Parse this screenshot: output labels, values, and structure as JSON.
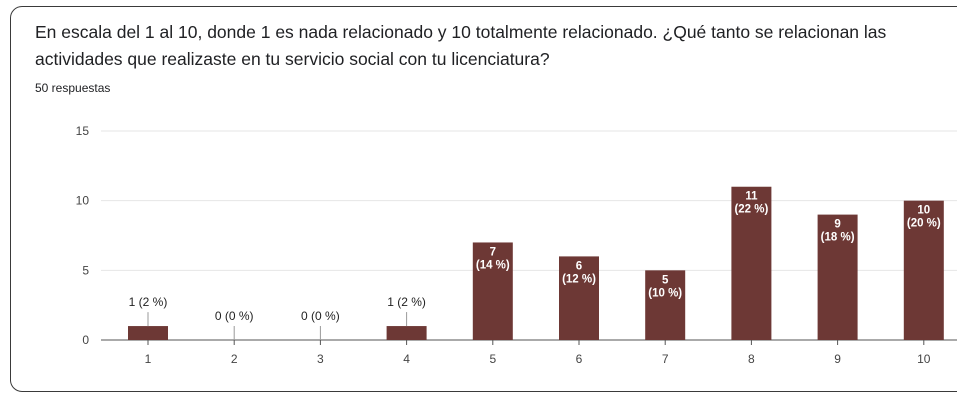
{
  "question": "En escala del 1 al 10, donde 1 es nada relacionado y 10 totalmente relacionado. ¿Qué tanto se relacionan las actividades que realizaste en tu servicio social con tu licenciatura?",
  "responses_text": "50 respuestas",
  "bar_color": "#6d3835",
  "chart_data": {
    "type": "bar",
    "title": "En escala del 1 al 10, donde 1 es nada relacionado y 10 totalmente relacionado. ¿Qué tanto se relacionan las actividades que realizaste en tu servicio social con tu licenciatura?",
    "subtitle": "50 respuestas",
    "categories": [
      "1",
      "2",
      "3",
      "4",
      "5",
      "6",
      "7",
      "8",
      "9",
      "10"
    ],
    "values": [
      1,
      0,
      0,
      1,
      7,
      6,
      5,
      11,
      9,
      10
    ],
    "percent_labels": [
      "(2 %)",
      "(0 %)",
      "(0 %)",
      "(2 %)",
      "(14 %)",
      "(12 %)",
      "(10 %)",
      "(22 %)",
      "(18 %)",
      "(20 %)"
    ],
    "yticks": [
      0,
      5,
      10,
      15
    ],
    "ylim": [
      0,
      15
    ],
    "xlabel": "",
    "ylabel": "",
    "grid": true,
    "legend": "none"
  }
}
